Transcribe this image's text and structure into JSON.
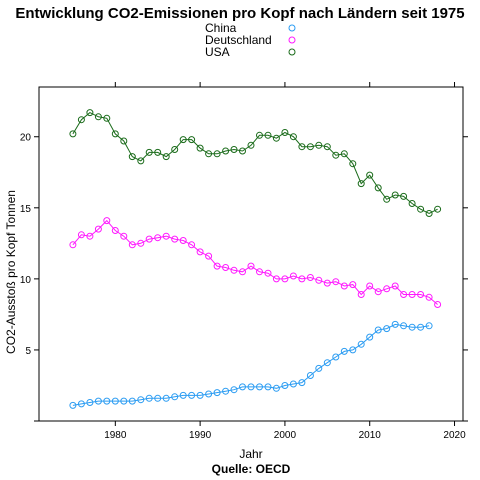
{
  "chart_data": {
    "type": "line",
    "title": "Entwicklung CO2-Emissionen pro Kopf nach Ländern seit 1975",
    "xlabel": "Jahr",
    "ylabel": "CO2-Ausstoß pro Kopf Tonnen",
    "caption": "Quelle: OECD",
    "xlim": [
      1971,
      2021
    ],
    "ylim": [
      0,
      23.5
    ],
    "x_ticks": [
      1980,
      1990,
      2000,
      2010,
      2020
    ],
    "y_ticks": [
      5,
      10,
      15,
      20
    ],
    "legend_position": "top-center",
    "grid": false,
    "series": [
      {
        "name": "China",
        "color": "#2b9cf2",
        "x": [
          1975,
          1976,
          1977,
          1978,
          1979,
          1980,
          1981,
          1982,
          1983,
          1984,
          1985,
          1986,
          1987,
          1988,
          1989,
          1990,
          1991,
          1992,
          1993,
          1994,
          1995,
          1996,
          1997,
          1998,
          1999,
          2000,
          2001,
          2002,
          2003,
          2004,
          2005,
          2006,
          2007,
          2008,
          2009,
          2010,
          2011,
          2012,
          2013,
          2014,
          2015,
          2016,
          2017
        ],
        "values": [
          1.1,
          1.2,
          1.3,
          1.4,
          1.4,
          1.4,
          1.4,
          1.4,
          1.5,
          1.6,
          1.6,
          1.6,
          1.7,
          1.8,
          1.8,
          1.8,
          1.9,
          2.0,
          2.1,
          2.2,
          2.4,
          2.4,
          2.4,
          2.4,
          2.3,
          2.5,
          2.6,
          2.7,
          3.2,
          3.7,
          4.1,
          4.5,
          4.9,
          5.0,
          5.4,
          5.9,
          6.4,
          6.5,
          6.8,
          6.7,
          6.6,
          6.6,
          6.7
        ]
      },
      {
        "name": "Deutschland",
        "color": "#ff19ff",
        "x": [
          1975,
          1976,
          1977,
          1978,
          1979,
          1980,
          1981,
          1982,
          1983,
          1984,
          1985,
          1986,
          1987,
          1988,
          1989,
          1990,
          1991,
          1992,
          1993,
          1994,
          1995,
          1996,
          1997,
          1998,
          1999,
          2000,
          2001,
          2002,
          2003,
          2004,
          2005,
          2006,
          2007,
          2008,
          2009,
          2010,
          2011,
          2012,
          2013,
          2014,
          2015,
          2016,
          2017,
          2018
        ],
        "values": [
          12.4,
          13.1,
          13.0,
          13.5,
          14.1,
          13.4,
          13.0,
          12.4,
          12.5,
          12.8,
          12.9,
          13.0,
          12.8,
          12.7,
          12.4,
          11.9,
          11.6,
          10.9,
          10.8,
          10.6,
          10.5,
          10.9,
          10.5,
          10.4,
          10.0,
          10.0,
          10.2,
          10.0,
          10.1,
          9.9,
          9.7,
          9.8,
          9.5,
          9.6,
          8.9,
          9.5,
          9.1,
          9.3,
          9.5,
          8.9,
          8.9,
          8.9,
          8.7,
          8.2
        ]
      },
      {
        "name": "USA",
        "color": "#1a6b1a",
        "x": [
          1975,
          1976,
          1977,
          1978,
          1979,
          1980,
          1981,
          1982,
          1983,
          1984,
          1985,
          1986,
          1987,
          1988,
          1989,
          1990,
          1991,
          1992,
          1993,
          1994,
          1995,
          1996,
          1997,
          1998,
          1999,
          2000,
          2001,
          2002,
          2003,
          2004,
          2005,
          2006,
          2007,
          2008,
          2009,
          2010,
          2011,
          2012,
          2013,
          2014,
          2015,
          2016,
          2017,
          2018
        ],
        "values": [
          20.2,
          21.2,
          21.7,
          21.4,
          21.3,
          20.2,
          19.7,
          18.6,
          18.3,
          18.9,
          18.9,
          18.6,
          19.1,
          19.8,
          19.8,
          19.2,
          18.8,
          18.8,
          19.0,
          19.1,
          19.0,
          19.4,
          20.1,
          20.1,
          19.9,
          20.3,
          20.0,
          19.3,
          19.3,
          19.4,
          19.3,
          18.7,
          18.8,
          18.1,
          16.7,
          17.3,
          16.4,
          15.6,
          15.9,
          15.8,
          15.3,
          14.9,
          14.6,
          14.9
        ]
      }
    ]
  }
}
